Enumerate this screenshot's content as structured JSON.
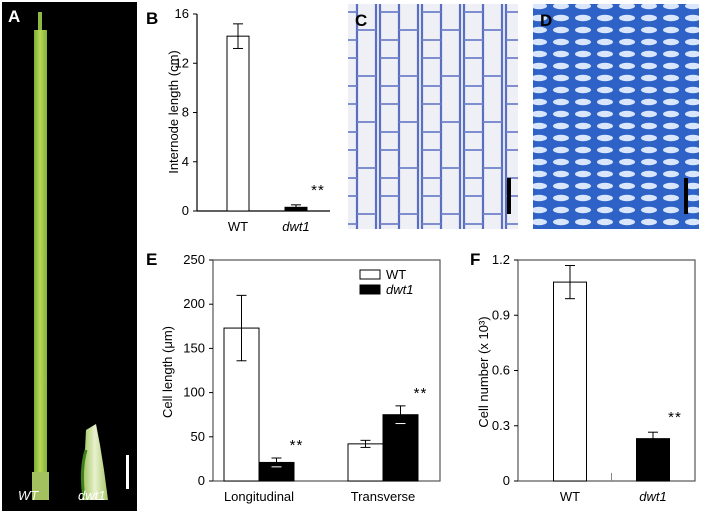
{
  "panels": {
    "a": {
      "letter": "A",
      "label_wt": "WT",
      "label_mut": "dwt1"
    },
    "b": {
      "letter": "B"
    },
    "c": {
      "letter": "C"
    },
    "d": {
      "letter": "D"
    },
    "e": {
      "letter": "E"
    },
    "f": {
      "letter": "F"
    }
  },
  "chart_data": [
    {
      "id": "B",
      "type": "bar",
      "categories": [
        "WT",
        "dwt1"
      ],
      "ylabel": "Internode length (cm)",
      "ylim": [
        0,
        16
      ],
      "yticks": [
        "0",
        "4",
        "8",
        "12",
        "16"
      ],
      "series": [
        {
          "values": [
            14.2,
            0.3
          ],
          "errors": [
            1.0,
            0.2
          ],
          "fills": [
            "#ffffff",
            "#000000"
          ]
        }
      ],
      "annotations": [
        {
          "category": "dwt1",
          "text": "**"
        }
      ]
    },
    {
      "id": "E",
      "type": "bar",
      "categories": [
        "Longitudinal",
        "Transverse"
      ],
      "ylabel": "Cell length (μm)",
      "ylim": [
        0,
        250
      ],
      "yticks": [
        "0",
        "50",
        "100",
        "150",
        "200",
        "250"
      ],
      "legend": {
        "placement": "top-right"
      },
      "series": [
        {
          "name": "WT",
          "values": [
            173,
            42
          ],
          "errors": [
            37,
            4
          ],
          "fill": "#ffffff"
        },
        {
          "name": "dwt1",
          "values": [
            21,
            75
          ],
          "errors": [
            5,
            10
          ],
          "fill": "#000000"
        }
      ],
      "annotations": [
        {
          "category": "Longitudinal",
          "series": "dwt1",
          "text": "**"
        },
        {
          "category": "Transverse",
          "series": "dwt1",
          "text": "**"
        }
      ]
    },
    {
      "id": "F",
      "type": "bar",
      "categories": [
        "WT",
        "dwt1"
      ],
      "ylabel": "Cell number (x 10³)",
      "ylim": [
        0,
        1.2
      ],
      "yticks": [
        "0",
        "0.3",
        "0.6",
        "0.9",
        "1.2"
      ],
      "series": [
        {
          "values": [
            1.08,
            0.23
          ],
          "errors": [
            0.09,
            0.035
          ],
          "fills": [
            "#ffffff",
            "#000000"
          ]
        }
      ],
      "annotations": [
        {
          "category": "dwt1",
          "text": "**"
        }
      ]
    }
  ]
}
